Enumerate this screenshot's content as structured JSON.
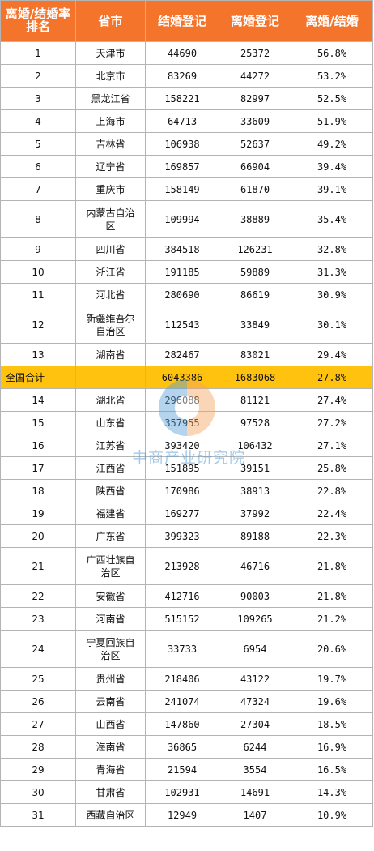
{
  "header": {
    "rank_label": "离婚/结婚率排名",
    "province_label": "省市",
    "marriage_label": "结婚登记",
    "divorce_label": "离婚登记",
    "ratio_label": "离婚/结婚"
  },
  "rows": [
    {
      "rank": "1",
      "province": "天津市",
      "marriage": "44690",
      "divorce": "25372",
      "ratio": "56.8%"
    },
    {
      "rank": "2",
      "province": "北京市",
      "marriage": "83269",
      "divorce": "44272",
      "ratio": "53.2%"
    },
    {
      "rank": "3",
      "province": "黑龙江省",
      "marriage": "158221",
      "divorce": "82997",
      "ratio": "52.5%"
    },
    {
      "rank": "4",
      "province": "上海市",
      "marriage": "64713",
      "divorce": "33609",
      "ratio": "51.9%"
    },
    {
      "rank": "5",
      "province": "吉林省",
      "marriage": "106938",
      "divorce": "52637",
      "ratio": "49.2%"
    },
    {
      "rank": "6",
      "province": "辽宁省",
      "marriage": "169857",
      "divorce": "66904",
      "ratio": "39.4%"
    },
    {
      "rank": "7",
      "province": "重庆市",
      "marriage": "158149",
      "divorce": "61870",
      "ratio": "39.1%"
    },
    {
      "rank": "8",
      "province": "内蒙古自治区",
      "marriage": "109994",
      "divorce": "38889",
      "ratio": "35.4%"
    },
    {
      "rank": "9",
      "province": "四川省",
      "marriage": "384518",
      "divorce": "126231",
      "ratio": "32.8%"
    },
    {
      "rank": "10",
      "province": "浙江省",
      "marriage": "191185",
      "divorce": "59889",
      "ratio": "31.3%"
    },
    {
      "rank": "11",
      "province": "河北省",
      "marriage": "280690",
      "divorce": "86619",
      "ratio": "30.9%"
    },
    {
      "rank": "12",
      "province": "新疆维吾尔自治区",
      "marriage": "112543",
      "divorce": "33849",
      "ratio": "30.1%"
    },
    {
      "rank": "13",
      "province": "湖南省",
      "marriage": "282467",
      "divorce": "83021",
      "ratio": "29.4%"
    },
    {
      "rank": "全国合计",
      "province": "",
      "marriage": "6043386",
      "divorce": "1683068",
      "ratio": "27.8%",
      "highlight": true
    },
    {
      "rank": "14",
      "province": "湖北省",
      "marriage": "296088",
      "divorce": "81121",
      "ratio": "27.4%"
    },
    {
      "rank": "15",
      "province": "山东省",
      "marriage": "357955",
      "divorce": "97528",
      "ratio": "27.2%"
    },
    {
      "rank": "16",
      "province": "江苏省",
      "marriage": "393420",
      "divorce": "106432",
      "ratio": "27.1%"
    },
    {
      "rank": "17",
      "province": "江西省",
      "marriage": "151895",
      "divorce": "39151",
      "ratio": "25.8%"
    },
    {
      "rank": "18",
      "province": "陕西省",
      "marriage": "170986",
      "divorce": "38913",
      "ratio": "22.8%"
    },
    {
      "rank": "19",
      "province": "福建省",
      "marriage": "169277",
      "divorce": "37992",
      "ratio": "22.4%"
    },
    {
      "rank": "20",
      "province": "广东省",
      "marriage": "399323",
      "divorce": "89188",
      "ratio": "22.3%"
    },
    {
      "rank": "21",
      "province": "广西壮族自治区",
      "marriage": "213928",
      "divorce": "46716",
      "ratio": "21.8%"
    },
    {
      "rank": "22",
      "province": "安徽省",
      "marriage": "412716",
      "divorce": "90003",
      "ratio": "21.8%"
    },
    {
      "rank": "23",
      "province": "河南省",
      "marriage": "515152",
      "divorce": "109265",
      "ratio": "21.2%"
    },
    {
      "rank": "24",
      "province": "宁夏回族自治区",
      "marriage": "33733",
      "divorce": "6954",
      "ratio": "20.6%"
    },
    {
      "rank": "25",
      "province": "贵州省",
      "marriage": "218406",
      "divorce": "43122",
      "ratio": "19.7%"
    },
    {
      "rank": "26",
      "province": "云南省",
      "marriage": "241074",
      "divorce": "47324",
      "ratio": "19.6%"
    },
    {
      "rank": "27",
      "province": "山西省",
      "marriage": "147860",
      "divorce": "27304",
      "ratio": "18.5%"
    },
    {
      "rank": "28",
      "province": "海南省",
      "marriage": "36865",
      "divorce": "6244",
      "ratio": "16.9%"
    },
    {
      "rank": "29",
      "province": "青海省",
      "marriage": "21594",
      "divorce": "3554",
      "ratio": "16.5%"
    },
    {
      "rank": "30",
      "province": "甘肃省",
      "marriage": "102931",
      "divorce": "14691",
      "ratio": "14.3%"
    },
    {
      "rank": "31",
      "province": "西藏自治区",
      "marriage": "12949",
      "divorce": "1407",
      "ratio": "10.9%"
    }
  ],
  "watermark": {
    "text": "中商产业研究院",
    "colors": {
      "orange": "#f4a460",
      "blue": "#5aa0d8"
    }
  },
  "colors": {
    "header_bg": "#f4742b",
    "header_text": "#ffffff",
    "highlight_bg": "#ffc20e",
    "border": "#b4b4b4"
  }
}
